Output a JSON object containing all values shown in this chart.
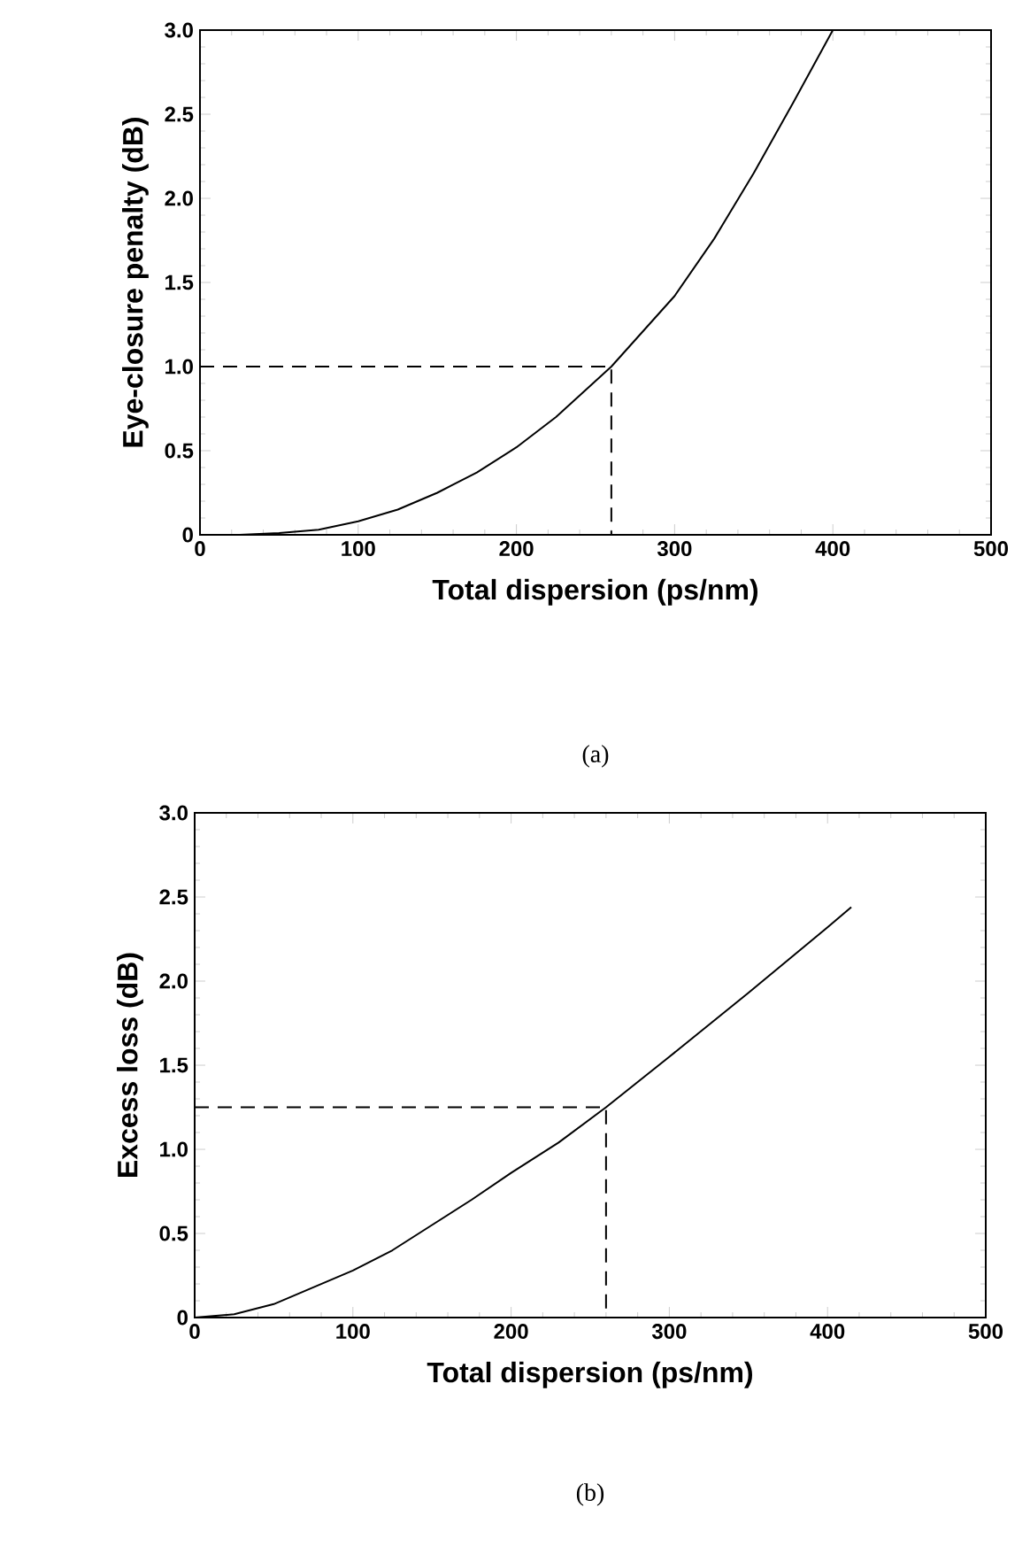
{
  "chart_data": [
    {
      "type": "line",
      "xlabel": "Total dispersion (ps/nm)",
      "ylabel": "Eye-closure penalty (dB)",
      "annotations": [
        "(a)"
      ],
      "xlim": [
        0,
        500
      ],
      "ylim": [
        0,
        3.0
      ],
      "xticks": [
        0,
        100,
        200,
        300,
        400,
        500
      ],
      "yticks": [
        0,
        0.5,
        {
          "value": 1,
          "label": "1.0"
        },
        1.5,
        {
          "value": 2,
          "label": "2.0"
        },
        2.5,
        {
          "value": 3,
          "label": "3.0"
        }
      ],
      "marker": "none",
      "series": [
        {
          "color": "#000000",
          "line_style": "solid",
          "x": [
            0,
            25,
            50,
            75,
            100,
            125,
            150,
            175,
            200,
            225,
            260,
            300,
            325,
            350,
            375,
            400
          ],
          "values": [
            0,
            0,
            0.01,
            0.03,
            0.08,
            0.15,
            0.25,
            0.37,
            0.52,
            0.7,
            1.0,
            1.42,
            1.76,
            2.15,
            2.57,
            3.0
          ]
        },
        {
          "color": "#000000",
          "line_style": "dashed",
          "x": [
            0,
            260,
            260
          ],
          "values": [
            1.0,
            1.0,
            0
          ]
        }
      ]
    },
    {
      "type": "line",
      "xlabel": "Total dispersion (ps/nm)",
      "ylabel": "Excess loss (dB)",
      "annotations": [
        "(b)"
      ],
      "xlim": [
        0,
        500
      ],
      "ylim": [
        0,
        3.0
      ],
      "xticks": [
        0,
        100,
        200,
        300,
        400,
        500
      ],
      "yticks": [
        0,
        0.5,
        {
          "value": 1,
          "label": "1.0"
        },
        1.5,
        {
          "value": 2,
          "label": "2.0"
        },
        2.5,
        {
          "value": 3,
          "label": "3.0"
        }
      ],
      "marker": "none",
      "series": [
        {
          "color": "#000000",
          "line_style": "solid",
          "x": [
            0,
            25,
            50,
            75,
            100,
            125,
            150,
            175,
            200,
            230,
            260,
            300,
            350,
            400,
            415
          ],
          "values": [
            0,
            0.02,
            0.08,
            0.18,
            0.28,
            0.4,
            0.55,
            0.7,
            0.86,
            1.04,
            1.25,
            1.55,
            1.93,
            2.32,
            2.44
          ]
        },
        {
          "color": "#000000",
          "line_style": "dashed",
          "x": [
            0,
            260,
            260
          ],
          "values": [
            1.25,
            1.25,
            0
          ]
        }
      ]
    }
  ]
}
